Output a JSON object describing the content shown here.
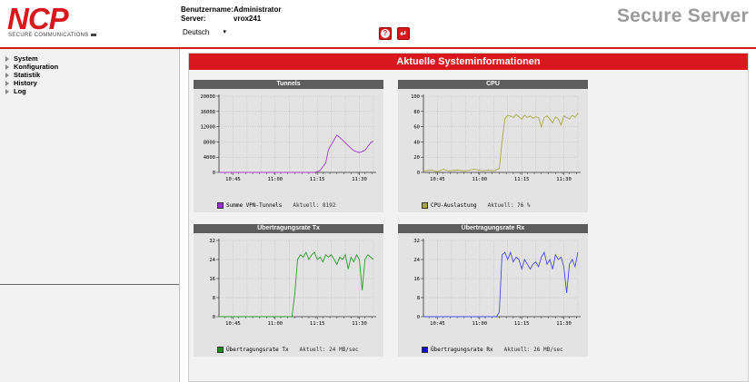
{
  "logo": {
    "name": "NCP",
    "subtitle": "SECURE COMMUNICATIONS"
  },
  "user": {
    "username_label": "Benutzername:",
    "username": "Administrator",
    "server_label": "Server:",
    "server": "vrox241"
  },
  "language": {
    "selected": "Deutsch"
  },
  "product_title": "Secure Server",
  "header_icons": [
    "help-icon",
    "logout-icon"
  ],
  "sidebar": {
    "items": [
      {
        "label": "System"
      },
      {
        "label": "Konfiguration"
      },
      {
        "label": "Statistik"
      },
      {
        "label": "History"
      },
      {
        "label": "Log"
      }
    ]
  },
  "page_title": "Aktuelle Systeminformationen",
  "colors": {
    "brand_red": "#d8181c",
    "panel_header": "#5d5d5d"
  },
  "chart_data": [
    {
      "title": "Tunnels",
      "type": "line",
      "ylim": [
        0,
        20000
      ],
      "yticks": [
        0,
        4000,
        8000,
        12000,
        16000,
        20000
      ],
      "xticks": [
        "10:45",
        "11:00",
        "11:15",
        "11:30"
      ],
      "xrange": [
        40,
        95
      ],
      "series": [
        {
          "name": "Summe VPN-Tunnels",
          "color": "#a63ccc",
          "x": [
            40,
            42,
            46,
            50,
            54,
            58,
            62,
            66,
            70,
            74,
            76,
            78,
            79,
            82,
            84,
            86,
            88,
            90,
            92,
            94,
            95
          ],
          "values": [
            0,
            0,
            0,
            0,
            0,
            0,
            0,
            0,
            0,
            0,
            500,
            2500,
            6000,
            9800,
            8500,
            7000,
            5700,
            5200,
            5800,
            7800,
            8200
          ]
        }
      ],
      "current_label": "Aktuell: 8192",
      "legend_color": "#9b30c8"
    },
    {
      "title": "CPU",
      "type": "line",
      "ylim": [
        0,
        100
      ],
      "yticks": [
        0,
        20,
        40,
        60,
        80,
        100
      ],
      "xticks": [
        "10:45",
        "11:00",
        "11:15",
        "11:30"
      ],
      "xrange": [
        40,
        95
      ],
      "series": [
        {
          "name": "CPU-Auslastung",
          "color": "#a8a848",
          "x": [
            40,
            43,
            45,
            47,
            49,
            52,
            55,
            58,
            61,
            63,
            65,
            67,
            68,
            69,
            70,
            71,
            72,
            73,
            74,
            75,
            76,
            77,
            78,
            79,
            80,
            81,
            82,
            83,
            84,
            85,
            86,
            87,
            88,
            89,
            90,
            91,
            92,
            93,
            94,
            95
          ],
          "values": [
            2,
            3,
            1,
            4,
            2,
            3,
            2,
            4,
            2,
            3,
            2,
            5,
            40,
            70,
            75,
            74,
            72,
            76,
            73,
            70,
            75,
            72,
            74,
            71,
            73,
            72,
            60,
            72,
            74,
            70,
            65,
            73,
            70,
            62,
            74,
            72,
            70,
            75,
            72,
            78
          ]
        }
      ],
      "current_label": "Aktuell: 76 %",
      "legend_color": "#a8a848"
    },
    {
      "title": "Übertragungsrate Tx",
      "type": "line",
      "ylim": [
        0,
        32
      ],
      "yticks": [
        0,
        8,
        16,
        24,
        32
      ],
      "xticks": [
        "10:45",
        "11:00",
        "11:15",
        "11:30"
      ],
      "xrange": [
        40,
        95
      ],
      "series": [
        {
          "name": "Übertragungsrate Tx",
          "color": "#2e9a2e",
          "x": [
            40,
            43,
            46,
            49,
            52,
            55,
            58,
            61,
            64,
            66,
            67,
            68,
            69,
            70,
            71,
            72,
            73,
            74,
            75,
            76,
            77,
            78,
            79,
            80,
            81,
            82,
            83,
            84,
            85,
            86,
            87,
            88,
            89,
            90,
            91,
            92,
            93,
            94,
            95
          ],
          "values": [
            0,
            0,
            0,
            0,
            0,
            0,
            0,
            0,
            0,
            0,
            10,
            24,
            26,
            25,
            27,
            24,
            26,
            27,
            24,
            25,
            23,
            26,
            25,
            26,
            24,
            22,
            25,
            24,
            26,
            20,
            25,
            23,
            26,
            24,
            11,
            24,
            26,
            25,
            24
          ]
        }
      ],
      "current_label": "Aktuell: 24 MB/sec",
      "legend_color": "#1e8a1e"
    },
    {
      "title": "Übertragungsrate Rx",
      "type": "line",
      "ylim": [
        0,
        32
      ],
      "yticks": [
        0,
        8,
        16,
        24,
        32
      ],
      "xticks": [
        "10:45",
        "11:00",
        "11:15",
        "11:30"
      ],
      "xrange": [
        40,
        95
      ],
      "series": [
        {
          "name": "Übertragungsrate Rx",
          "color": "#4a4ae0",
          "x": [
            40,
            43,
            46,
            49,
            52,
            55,
            58,
            61,
            64,
            66,
            67,
            68,
            69,
            70,
            71,
            72,
            73,
            74,
            75,
            76,
            77,
            78,
            79,
            80,
            81,
            82,
            83,
            84,
            85,
            86,
            87,
            88,
            89,
            90,
            91,
            92,
            93,
            94,
            95
          ],
          "values": [
            0,
            0,
            0,
            0,
            0,
            0,
            0,
            0,
            0,
            0,
            2,
            26,
            27,
            24,
            27,
            23,
            25,
            24,
            20,
            24,
            22,
            20,
            22,
            23,
            21,
            25,
            27,
            22,
            24,
            20,
            26,
            24,
            25,
            21,
            10,
            22,
            24,
            21,
            27
          ]
        }
      ],
      "current_label": "Aktuell: 26 MB/sec",
      "legend_color": "#1010c8"
    }
  ]
}
